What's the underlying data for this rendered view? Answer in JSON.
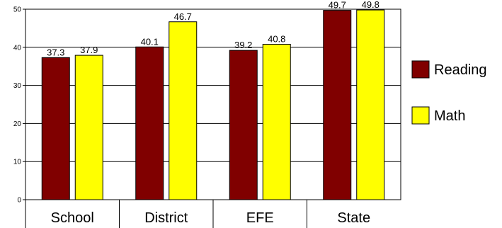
{
  "chart_data": {
    "type": "bar",
    "categories": [
      "School",
      "District",
      "EFE",
      "State"
    ],
    "series": [
      {
        "name": "Reading",
        "values": [
          37.3,
          40.1,
          39.2,
          49.7
        ]
      },
      {
        "name": "Math",
        "values": [
          37.9,
          46.7,
          40.8,
          49.8
        ]
      }
    ],
    "ylim": [
      0,
      50
    ],
    "yticks": [
      0,
      10,
      20,
      30,
      40,
      50
    ],
    "grid": true,
    "legend": "right",
    "colors": {
      "Reading": "#800000",
      "Math": "#ffff00"
    },
    "data_label_decimals": 1
  }
}
